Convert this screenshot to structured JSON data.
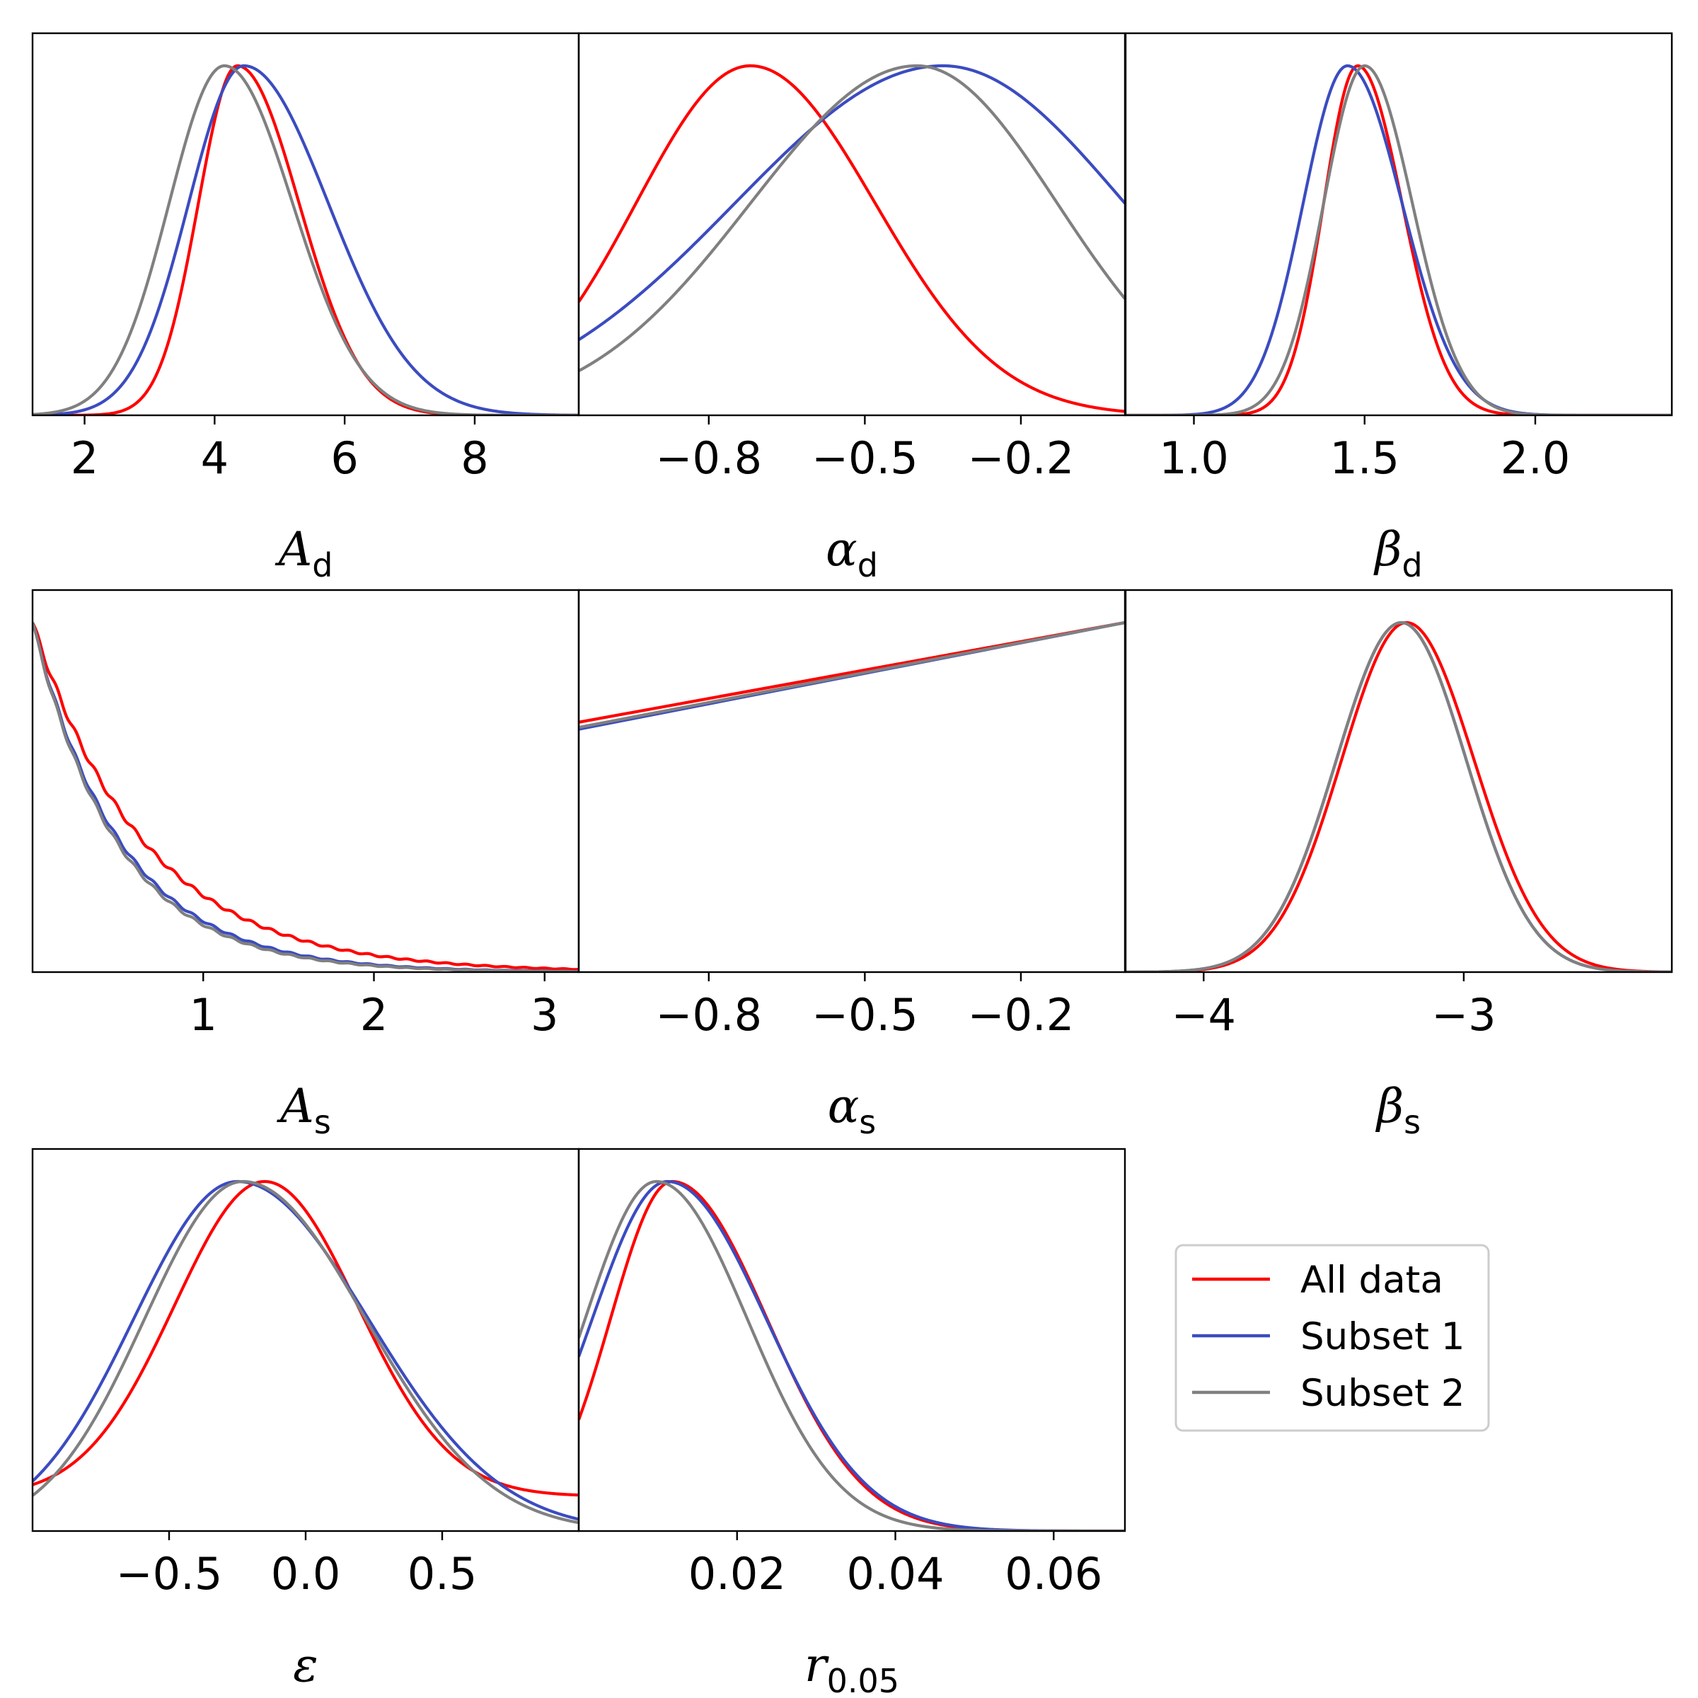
{
  "chart_data": [
    {
      "type": "line",
      "param": "A_d",
      "xlabel": "A",
      "xlabel_sub": "d",
      "xlim": [
        1.2,
        9.6
      ],
      "ticks": [
        2,
        4,
        6,
        8
      ],
      "tick_labels": [
        "2",
        "4",
        "6",
        "8"
      ],
      "series": [
        {
          "name": "All data",
          "color": "#ff0000",
          "shape": "gauss2",
          "mu": 4.35,
          "sl": 0.6,
          "sr": 0.95
        },
        {
          "name": "Subset 1",
          "color": "#3b4cc0",
          "shape": "gauss2",
          "mu": 4.45,
          "sl": 0.85,
          "sr": 1.3
        },
        {
          "name": "Subset 2",
          "color": "#808080",
          "shape": "gauss2",
          "mu": 4.15,
          "sl": 0.85,
          "sr": 1.05
        }
      ]
    },
    {
      "type": "line",
      "param": "alpha_d",
      "xlabel": "α",
      "xlabel_sub": "d",
      "xlim": [
        -1.05,
        0.0
      ],
      "ticks": [
        -0.8,
        -0.5,
        -0.2
      ],
      "tick_labels": [
        "−0.8",
        "−0.5",
        "−0.2"
      ],
      "series": [
        {
          "name": "All data",
          "color": "#ff0000",
          "shape": "gauss2",
          "mu": -0.72,
          "sl": 0.22,
          "sr": 0.24
        },
        {
          "name": "Subset 1",
          "color": "#3b4cc0",
          "shape": "gauss2",
          "mu": -0.35,
          "sl": 0.4,
          "sr": 0.35
        },
        {
          "name": "Subset 2",
          "color": "#808080",
          "shape": "gauss2",
          "mu": -0.4,
          "sl": 0.32,
          "sr": 0.27
        }
      ]
    },
    {
      "type": "line",
      "param": "beta_d",
      "xlabel": "β",
      "xlabel_sub": "d",
      "xlim": [
        0.8,
        2.4
      ],
      "ticks": [
        1.0,
        1.5,
        2.0
      ],
      "tick_labels": [
        "1.0",
        "1.5",
        "2.0"
      ],
      "series": [
        {
          "name": "All data",
          "color": "#ff0000",
          "shape": "gauss2",
          "mu": 1.48,
          "sl": 0.1,
          "sr": 0.13
        },
        {
          "name": "Subset 1",
          "color": "#3b4cc0",
          "shape": "gauss2",
          "mu": 1.45,
          "sl": 0.13,
          "sr": 0.16
        },
        {
          "name": "Subset 2",
          "color": "#808080",
          "shape": "gauss2",
          "mu": 1.5,
          "sl": 0.12,
          "sr": 0.14
        }
      ]
    },
    {
      "type": "line",
      "param": "A_s",
      "xlabel": "A",
      "xlabel_sub": "s",
      "xlim": [
        0.0,
        3.2
      ],
      "ticks": [
        1,
        2,
        3
      ],
      "tick_labels": [
        "1",
        "2",
        "3"
      ],
      "series": [
        {
          "name": "All data",
          "color": "#ff0000",
          "shape": "exp",
          "scale": 0.66,
          "noise": 0.01
        },
        {
          "name": "Subset 1",
          "color": "#3b4cc0",
          "shape": "exp",
          "scale": 0.52,
          "noise": 0.008
        },
        {
          "name": "Subset 2",
          "color": "#808080",
          "shape": "exp",
          "scale": 0.5,
          "noise": 0.008
        }
      ]
    },
    {
      "type": "line",
      "param": "alpha_s",
      "xlabel": "α",
      "xlabel_sub": "s",
      "xlim": [
        -1.05,
        0.0
      ],
      "ticks": [
        -0.8,
        -0.5,
        -0.2
      ],
      "tick_labels": [
        "−0.8",
        "−0.5",
        "−0.2"
      ],
      "series": [
        {
          "name": "All data",
          "color": "#ff0000",
          "shape": "linear",
          "y0": 0.715,
          "y1": 1.0
        },
        {
          "name": "Subset 1",
          "color": "#3b4cc0",
          "shape": "linear",
          "y0": 0.695,
          "y1": 1.0
        },
        {
          "name": "Subset 2",
          "color": "#808080",
          "shape": "linear",
          "y0": 0.7,
          "y1": 1.0
        }
      ]
    },
    {
      "type": "line",
      "param": "beta_s",
      "xlabel": "β",
      "xlabel_sub": "s",
      "xlim": [
        -4.3,
        -2.2
      ],
      "ticks": [
        -4,
        -3
      ],
      "tick_labels": [
        "−4",
        "−3"
      ],
      "series": [
        {
          "name": "All data",
          "color": "#ff0000",
          "shape": "gauss2",
          "mu": -3.22,
          "sl": 0.25,
          "sr": 0.26
        },
        {
          "name": "Subset 1",
          "color": "#3b4cc0",
          "shape": "gauss2",
          "mu": -3.24,
          "sl": 0.25,
          "sr": 0.25
        },
        {
          "name": "Subset 2",
          "color": "#808080",
          "shape": "gauss2",
          "mu": -3.24,
          "sl": 0.25,
          "sr": 0.25
        }
      ]
    },
    {
      "type": "line",
      "param": "epsilon",
      "xlabel": "ε",
      "xlabel_sub": "",
      "xlim": [
        -1.0,
        1.0
      ],
      "ticks": [
        -0.5,
        0.0,
        0.5
      ],
      "tick_labels": [
        "−0.5",
        "0.0",
        "0.5"
      ],
      "series": [
        {
          "name": "All data",
          "color": "#ff0000",
          "shape": "gauss2",
          "mu": -0.15,
          "sl": 0.33,
          "sr": 0.34,
          "base": 0.1
        },
        {
          "name": "Subset 1",
          "color": "#3b4cc0",
          "shape": "gauss2",
          "mu": -0.25,
          "sl": 0.38,
          "sr": 0.48
        },
        {
          "name": "Subset 2",
          "color": "#808080",
          "shape": "gauss2",
          "mu": -0.23,
          "sl": 0.36,
          "sr": 0.45
        }
      ]
    },
    {
      "type": "line",
      "param": "r_0.05",
      "xlabel": "r",
      "xlabel_sub": "0.05",
      "xlim": [
        0.0,
        0.069
      ],
      "ticks": [
        0.02,
        0.04,
        0.06
      ],
      "tick_labels": [
        "0.02",
        "0.04",
        "0.06"
      ],
      "series": [
        {
          "name": "All data",
          "color": "#ff0000",
          "shape": "gauss2",
          "mu": 0.0118,
          "sl": 0.0078,
          "sr": 0.012
        },
        {
          "name": "Subset 1",
          "color": "#3b4cc0",
          "shape": "gauss2",
          "mu": 0.0112,
          "sl": 0.0095,
          "sr": 0.0125
        },
        {
          "name": "Subset 2",
          "color": "#808080",
          "shape": "gauss2",
          "mu": 0.0098,
          "sl": 0.009,
          "sr": 0.0115
        }
      ]
    }
  ],
  "legend": {
    "placement": "bottom-right",
    "items": [
      {
        "label": "All data",
        "color": "#ff0000"
      },
      {
        "label": "Subset 1",
        "color": "#3b4cc0"
      },
      {
        "label": "Subset 2",
        "color": "#808080"
      }
    ]
  }
}
